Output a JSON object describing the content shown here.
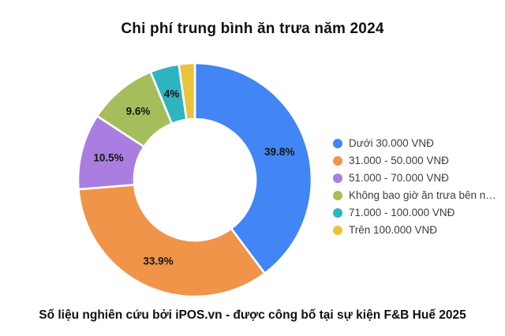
{
  "title": "Chi phí trung bình ăn trưa năm 2024",
  "footer": "Số liệu nghiên cứu bởi iPOS.vn - được công bố tại sự kiện F&B Huế 2025",
  "chart_data": {
    "type": "pie",
    "subtype": "donut",
    "title": "Chi phí trung bình ăn trưa năm 2024",
    "legend_position": "right",
    "inner_radius_ratio": 0.52,
    "start_angle_deg": 0,
    "direction": "clockwise",
    "slices": [
      {
        "label": "Dưới 30.000 VNĐ",
        "value": 39.8,
        "display": "39.8%",
        "color": "#4285f4"
      },
      {
        "label": "31.000 - 50.000 VNĐ",
        "value": 33.9,
        "display": "33.9%",
        "color": "#f0944a"
      },
      {
        "label": "51.000 - 70.000 VNĐ",
        "value": 10.5,
        "display": "10.5%",
        "color": "#aa7ee0"
      },
      {
        "label": "Không bao giờ ăn trưa bên n…",
        "value": 9.6,
        "display": "9.6%",
        "color": "#a6bd5c"
      },
      {
        "label": "71.000 - 100.000 VNĐ",
        "value": 4.0,
        "display": "4%",
        "color": "#2eb3c1"
      },
      {
        "label": "Trên 100.000 VNĐ",
        "value": 2.2,
        "display": "",
        "color": "#e9c33c"
      }
    ]
  }
}
